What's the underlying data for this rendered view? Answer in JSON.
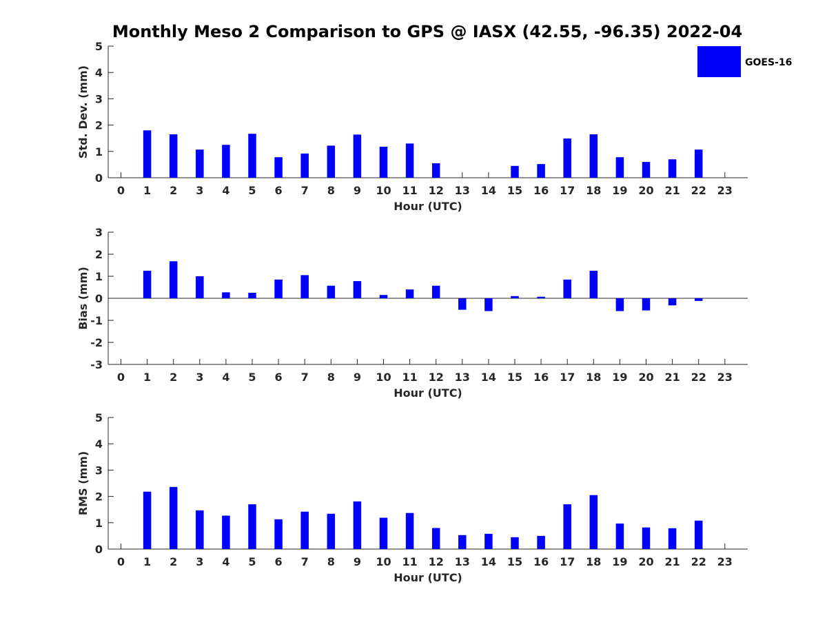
{
  "figure": {
    "title": "Monthly Meso 2 Comparison to GPS @ IASX (42.55, -96.35) 2022-04"
  },
  "legend": {
    "label": "GOES-16",
    "color": "#0000ff",
    "placement": "top-right"
  },
  "chart_data": [
    {
      "type": "bar",
      "xlabel": "Hour (UTC)",
      "ylabel": "Std. Dev. (mm)",
      "ylim": [
        0,
        5
      ],
      "yticks": [
        0,
        1,
        2,
        3,
        4,
        5
      ],
      "categories": [
        "0",
        "1",
        "2",
        "3",
        "4",
        "5",
        "6",
        "7",
        "8",
        "9",
        "10",
        "11",
        "12",
        "13",
        "14",
        "15",
        "16",
        "17",
        "18",
        "19",
        "20",
        "21",
        "22",
        "23"
      ],
      "series": [
        {
          "name": "GOES-16",
          "values": [
            null,
            1.8,
            1.65,
            1.07,
            1.25,
            1.67,
            0.78,
            0.92,
            1.22,
            1.64,
            1.18,
            1.3,
            0.55,
            null,
            null,
            0.45,
            0.52,
            1.49,
            1.65,
            0.78,
            0.6,
            0.7,
            1.07,
            null
          ]
        }
      ]
    },
    {
      "type": "bar",
      "xlabel": "Hour (UTC)",
      "ylabel": "Bias (mm)",
      "ylim": [
        -3,
        3
      ],
      "yticks": [
        -3,
        -2,
        -1,
        0,
        1,
        2,
        3
      ],
      "categories": [
        "0",
        "1",
        "2",
        "3",
        "4",
        "5",
        "6",
        "7",
        "8",
        "9",
        "10",
        "11",
        "12",
        "13",
        "14",
        "15",
        "16",
        "17",
        "18",
        "19",
        "20",
        "21",
        "22",
        "23"
      ],
      "series": [
        {
          "name": "GOES-16",
          "values": [
            null,
            1.25,
            1.68,
            1.0,
            0.27,
            0.25,
            0.85,
            1.05,
            0.57,
            0.78,
            0.15,
            0.4,
            0.57,
            -0.52,
            -0.58,
            0.1,
            0.07,
            0.85,
            1.25,
            -0.58,
            -0.55,
            -0.32,
            -0.12,
            null
          ]
        }
      ]
    },
    {
      "type": "bar",
      "xlabel": "Hour (UTC)",
      "ylabel": "RMS (mm)",
      "ylim": [
        0,
        5
      ],
      "yticks": [
        0,
        1,
        2,
        3,
        4,
        5
      ],
      "categories": [
        "0",
        "1",
        "2",
        "3",
        "4",
        "5",
        "6",
        "7",
        "8",
        "9",
        "10",
        "11",
        "12",
        "13",
        "14",
        "15",
        "16",
        "17",
        "18",
        "19",
        "20",
        "21",
        "22",
        "23"
      ],
      "series": [
        {
          "name": "GOES-16",
          "values": [
            null,
            2.18,
            2.36,
            1.47,
            1.27,
            1.7,
            1.13,
            1.42,
            1.34,
            1.81,
            1.19,
            1.37,
            0.8,
            0.53,
            0.58,
            0.45,
            0.5,
            1.7,
            2.05,
            0.97,
            0.82,
            0.79,
            1.08,
            null
          ]
        }
      ]
    }
  ]
}
